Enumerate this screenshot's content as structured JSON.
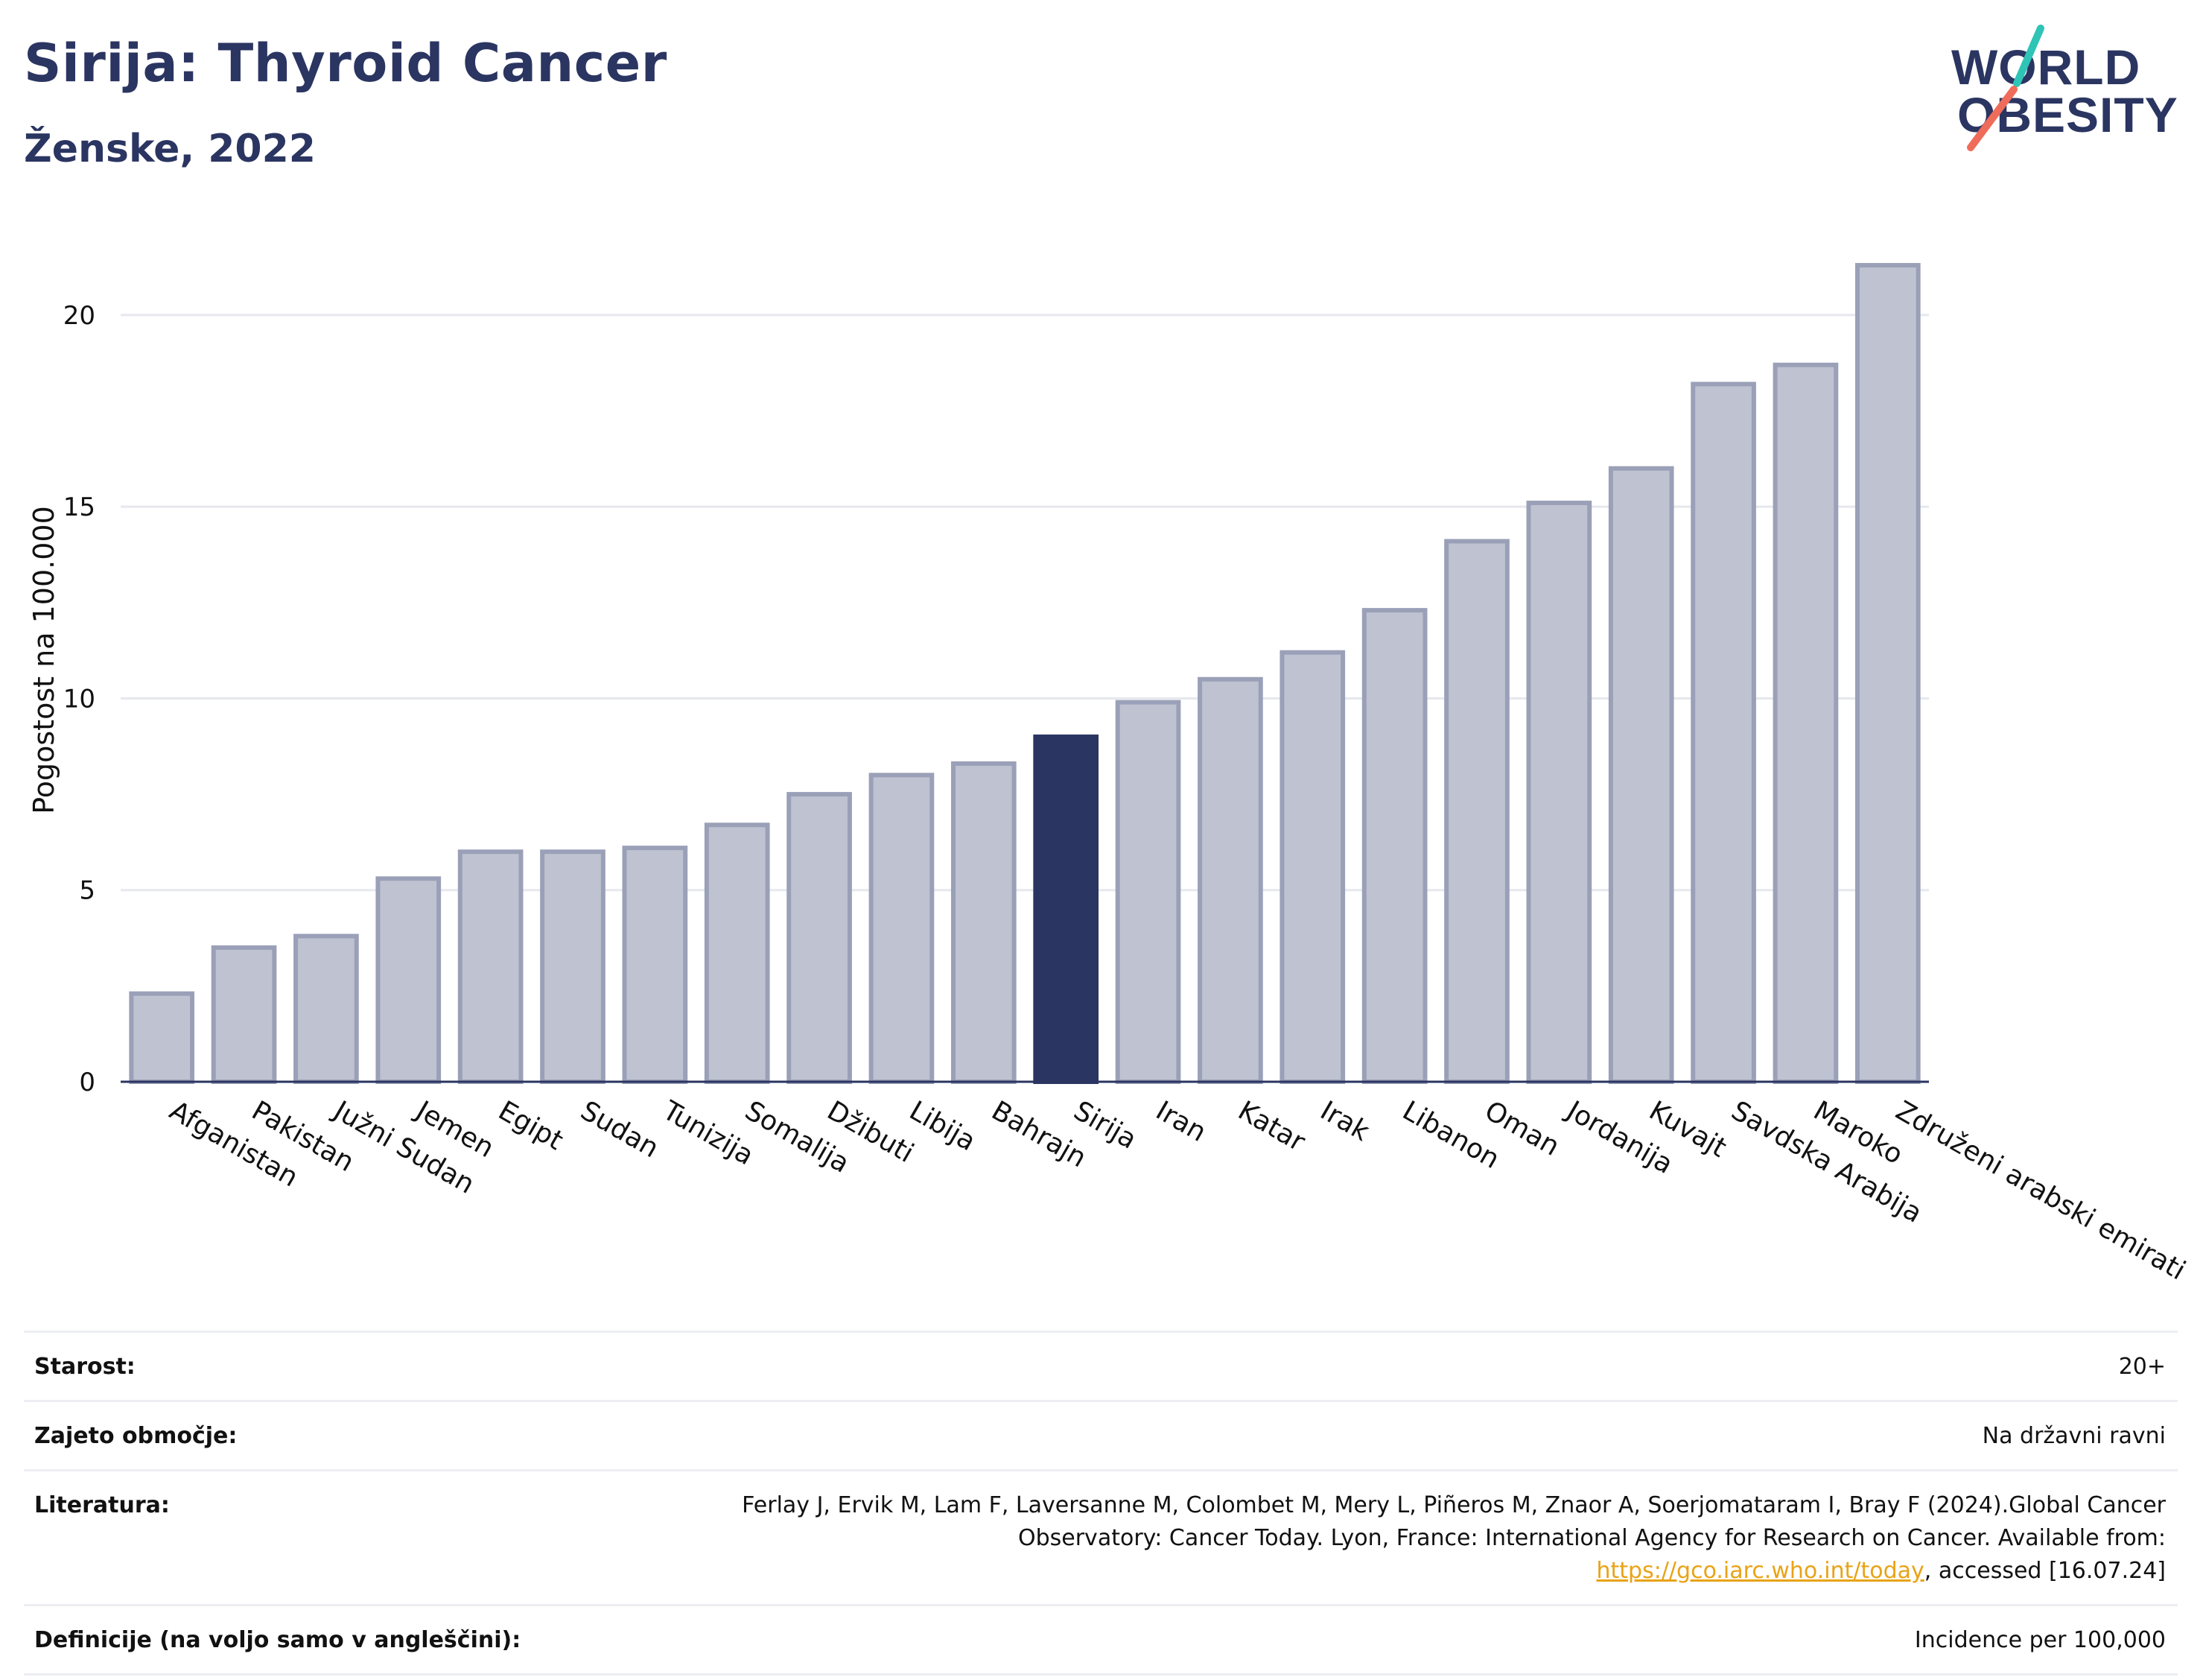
{
  "header": {
    "title": "Sirija: Thyroid Cancer",
    "subtitle": "Ženske, 2022"
  },
  "logo": {
    "line1": "WORLD",
    "line2": "OBESITY",
    "slash_colors": [
      "#2ec4b6",
      "#ef6c5a"
    ]
  },
  "chart_data": {
    "type": "bar",
    "ylabel": "Pogostost na 100.000",
    "xlabel": "",
    "ylim": [
      0,
      22
    ],
    "yticks": [
      0,
      5,
      10,
      15,
      20
    ],
    "grid": true,
    "highlight": "Sirija",
    "colors": {
      "bar": "#bfc3d1",
      "bar_border": "#9aa0b7",
      "highlight": "#2b3561",
      "grid": "#e6e8ee",
      "axis": "#2b3561"
    },
    "categories": [
      "Afganistan",
      "Pakistan",
      "Južni Sudan",
      "Jemen",
      "Egipt",
      "Sudan",
      "Tunizija",
      "Somalija",
      "Džibuti",
      "Libija",
      "Bahrajn",
      "Sirija",
      "Iran",
      "Katar",
      "Irak",
      "Libanon",
      "Oman",
      "Jordanija",
      "Kuvajt",
      "Savdska Arabija",
      "Maroko",
      "Združeni arabski emirati"
    ],
    "values": [
      2.3,
      3.5,
      3.8,
      5.3,
      6.0,
      6.0,
      6.1,
      6.7,
      7.5,
      8.0,
      8.3,
      9.0,
      9.9,
      10.5,
      11.2,
      12.3,
      14.1,
      15.1,
      16.0,
      18.2,
      18.7,
      21.3
    ]
  },
  "info": {
    "rows": [
      {
        "label": "Starost:",
        "value": "20+"
      },
      {
        "label": "Zajeto območje:",
        "value": "Na državni ravni"
      },
      {
        "label": "Literatura:",
        "value_before": "Ferlay J, Ervik M, Lam F, Laversanne M, Colombet M, Mery L, Piñeros M, Znaor A, Soerjomataram I, Bray F (2024).Global Cancer Observatory: Cancer Today. Lyon, France: International Agency for Research on Cancer. Available from: ",
        "link": "https://gco.iarc.who.int/today",
        "value_after": ", accessed [16.07.24]"
      },
      {
        "label": "Definicije (na voljo samo v angleščini):",
        "value": "Incidence per 100,000"
      }
    ]
  }
}
